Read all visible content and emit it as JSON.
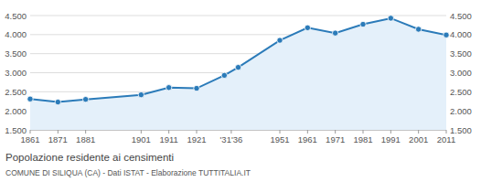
{
  "chart_data": {
    "type": "line",
    "title": "Popolazione residente ai censimenti",
    "subtitle": "COMUNE DI SILIQUA (CA) - Dati ISTAT - Elaborazione TUTTITALIA.IT",
    "x": [
      1861,
      1871,
      1881,
      1901,
      1911,
      1921,
      1931,
      1936,
      1951,
      1961,
      1971,
      1981,
      1991,
      2001,
      2011
    ],
    "values": [
      2310,
      2230,
      2300,
      2420,
      2610,
      2590,
      2930,
      3140,
      3850,
      4180,
      4040,
      4270,
      4430,
      4140,
      3990
    ],
    "color": "#2b7bb9",
    "marker": "circle",
    "xlim": [
      1861,
      2011
    ],
    "xticks": [
      1861,
      1871,
      1881,
      1901,
      1911,
      1921,
      {
        "value": 1933.5,
        "label": "'31'36"
      },
      1951,
      1961,
      1971,
      1981,
      1991,
      2001,
      2011
    ],
    "ylim": [
      1500,
      4500
    ],
    "yticks": [
      {
        "value": 1500,
        "label": "1.500"
      },
      {
        "value": 2000,
        "label": "2.000"
      },
      {
        "value": 2500,
        "label": "2.500"
      },
      {
        "value": 3000,
        "label": "3.000"
      },
      {
        "value": 3500,
        "label": "3.500"
      },
      {
        "value": 4000,
        "label": "4.000"
      },
      {
        "value": 4500,
        "label": "4.500"
      }
    ],
    "grid": true
  }
}
